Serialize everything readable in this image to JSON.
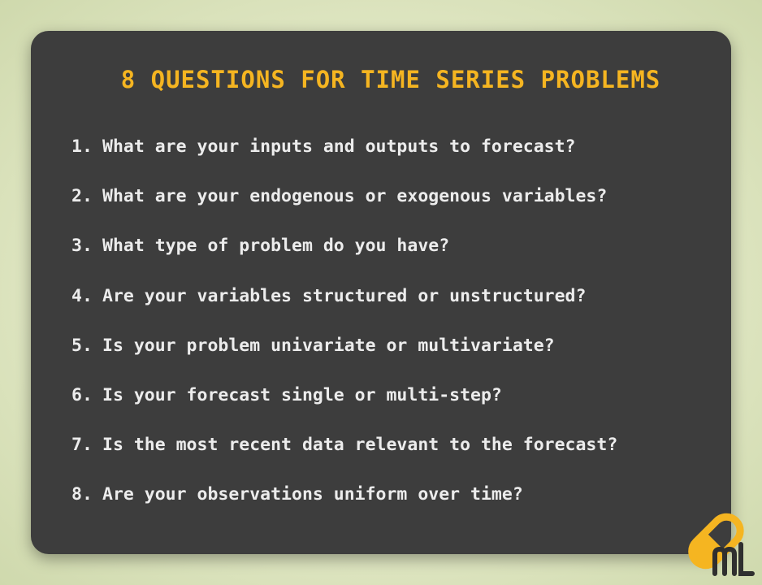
{
  "title": "8 QUESTIONS FOR TIME SERIES PROBLEMS",
  "questions": [
    {
      "number": "1.",
      "text": "What are your inputs and outputs to forecast?"
    },
    {
      "number": "2.",
      "text": "What are your endogenous or exogenous variables?"
    },
    {
      "number": "3.",
      "text": "What type of problem do you have?"
    },
    {
      "number": "4.",
      "text": "Are your variables structured or unstructured?"
    },
    {
      "number": "5.",
      "text": "Is your problem univariate or multivariate?"
    },
    {
      "number": "6.",
      "text": "Is your forecast single or multi-step?"
    },
    {
      "number": "7.",
      "text": "Is the most recent data relevant to the forecast?"
    },
    {
      "number": "8.",
      "text": "Are your observations uniform over time?"
    }
  ],
  "colors": {
    "background": "#dfe6c2",
    "card": "#3d3d3d",
    "title": "#f5b521",
    "text": "#ececec",
    "logo_yellow": "#f5b521",
    "logo_dark": "#2f2f2f"
  },
  "logo": {
    "icon": "pill-ml-logo-icon",
    "text": "ML"
  }
}
